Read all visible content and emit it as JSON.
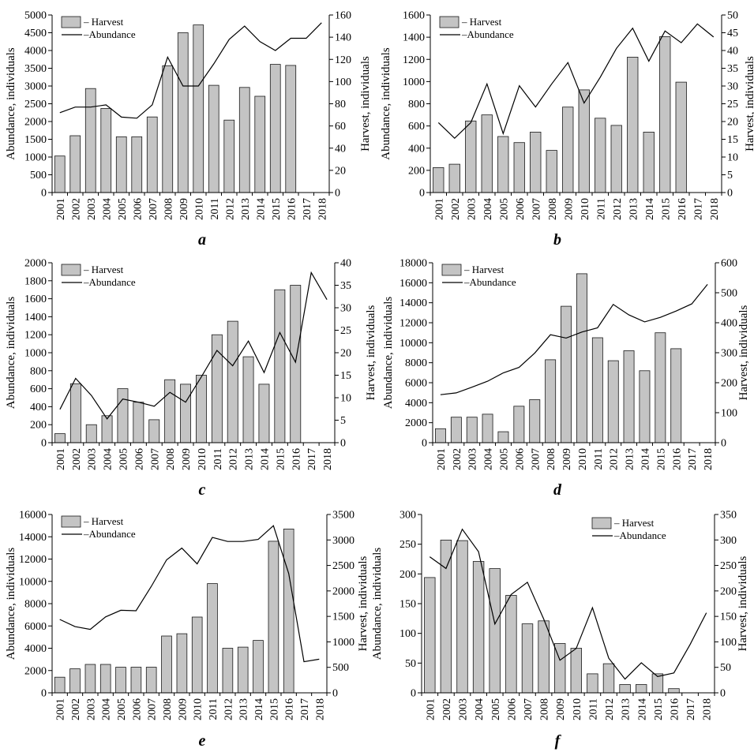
{
  "figure": {
    "panel_labels": [
      "a",
      "b",
      "c",
      "d",
      "e",
      "f"
    ]
  },
  "chart_data": [
    {
      "panel": "a",
      "type": "bar",
      "categories": [
        "2001",
        "2002",
        "2003",
        "2004",
        "2005",
        "2006",
        "2007",
        "2008",
        "2009",
        "2010",
        "2011",
        "2012",
        "2013",
        "2014",
        "2015",
        "2016",
        "2017",
        "2018"
      ],
      "ylabel_left": "Abundance, individuals",
      "ylabel_right": "Harvest, individuals",
      "ylim_left": [
        0,
        5000
      ],
      "yticks_left": [
        0,
        500,
        1000,
        1500,
        2000,
        2500,
        3000,
        3500,
        4000,
        4500,
        5000
      ],
      "ylim_right": [
        0,
        160
      ],
      "yticks_right": [
        0,
        20,
        40,
        60,
        80,
        100,
        120,
        140,
        160
      ],
      "legend": [
        "– Harvest",
        "–Abundance"
      ],
      "legend_position": "top-left",
      "series": [
        {
          "name": "Harvest",
          "kind": "bar",
          "axis": "left",
          "values": [
            1030,
            1600,
            2930,
            2370,
            1570,
            1570,
            2130,
            3570,
            4500,
            4720,
            3020,
            2040,
            2960,
            2710,
            3610,
            3580,
            null,
            null
          ]
        },
        {
          "name": "Abundance",
          "kind": "line",
          "axis": "right",
          "values": [
            72,
            77,
            77,
            79,
            68,
            67,
            79,
            122,
            96,
            96,
            116,
            138,
            150,
            136,
            128,
            139,
            139,
            153
          ]
        }
      ]
    },
    {
      "panel": "b",
      "type": "bar",
      "categories": [
        "2001",
        "2002",
        "2003",
        "2004",
        "2005",
        "2006",
        "2007",
        "2008",
        "2009",
        "2010",
        "2011",
        "2012",
        "2013",
        "2014",
        "2015",
        "2016",
        "2017",
        "2018"
      ],
      "ylabel_left": "Abundance, individuals",
      "ylabel_right": "Harvest, individuals",
      "ylim_left": [
        0,
        1600
      ],
      "yticks_left": [
        0,
        200,
        400,
        600,
        800,
        1000,
        1200,
        1400,
        1600
      ],
      "ylim_right": [
        0,
        50
      ],
      "yticks_right": [
        0,
        5,
        10,
        15,
        20,
        25,
        30,
        35,
        40,
        45,
        50
      ],
      "legend": [
        "– Harvest",
        "–Abundance"
      ],
      "legend_position": "top-left",
      "series": [
        {
          "name": "Harvest",
          "kind": "bar",
          "axis": "left",
          "values": [
            225,
            255,
            645,
            700,
            505,
            450,
            545,
            380,
            770,
            925,
            670,
            605,
            1220,
            545,
            1405,
            995,
            null,
            null
          ]
        },
        {
          "name": "Abundance",
          "kind": "line",
          "axis": "right",
          "values": [
            19.7,
            15.3,
            19.7,
            30.6,
            16.6,
            30.1,
            24.1,
            30.6,
            36.6,
            25.2,
            32.5,
            40.6,
            46.3,
            37.0,
            45.5,
            42.2,
            47.5,
            43.8
          ]
        }
      ]
    },
    {
      "panel": "c",
      "type": "bar",
      "categories": [
        "2001",
        "2002",
        "2003",
        "2004",
        "2005",
        "2006",
        "2007",
        "2008",
        "2009",
        "2010",
        "2011",
        "2012",
        "2013",
        "2014",
        "2015",
        "2016",
        "2017",
        "2018"
      ],
      "ylabel_left": "Abundance, individuals",
      "ylabel_right": "Harvest, individuals",
      "ylim_left": [
        0,
        2000
      ],
      "yticks_left": [
        0,
        200,
        400,
        600,
        800,
        1000,
        1200,
        1400,
        1600,
        1800,
        2000
      ],
      "ylim_right": [
        0,
        40
      ],
      "yticks_right": [
        0,
        5,
        10,
        15,
        20,
        25,
        30,
        35,
        40
      ],
      "legend": [
        "– Harvest",
        "–Abundance"
      ],
      "legend_position": "top-left",
      "series": [
        {
          "name": "Harvest",
          "kind": "bar",
          "axis": "left",
          "values": [
            100,
            655,
            200,
            300,
            600,
            450,
            255,
            700,
            650,
            750,
            1200,
            1350,
            955,
            650,
            1700,
            1750,
            null,
            null
          ]
        },
        {
          "name": "Abundance",
          "kind": "line",
          "axis": "right",
          "values": [
            7.4,
            14.3,
            10.5,
            5.3,
            9.7,
            9.0,
            8.1,
            11.2,
            9.0,
            14.6,
            20.5,
            17.1,
            22.6,
            15.6,
            24.5,
            17.9,
            37.8,
            31.8
          ]
        }
      ]
    },
    {
      "panel": "d",
      "type": "bar",
      "categories": [
        "2001",
        "2002",
        "2003",
        "2004",
        "2005",
        "2006",
        "2007",
        "2008",
        "2009",
        "2010",
        "2011",
        "2012",
        "2013",
        "2014",
        "2015",
        "2016",
        "2017",
        "2018"
      ],
      "ylabel_left": "Abundance, individuals",
      "ylabel_right": "Harvest, individuals",
      "ylim_left": [
        0,
        18000
      ],
      "yticks_left": [
        0,
        2000,
        4000,
        6000,
        8000,
        10000,
        12000,
        14000,
        16000,
        18000
      ],
      "ylim_right": [
        0,
        600
      ],
      "yticks_right": [
        0,
        100,
        200,
        300,
        400,
        500,
        600
      ],
      "legend": [
        "– Harvest",
        "–Abundance"
      ],
      "legend_position": "top-left",
      "series": [
        {
          "name": "Harvest",
          "kind": "bar",
          "axis": "left",
          "values": [
            1400,
            2550,
            2550,
            2850,
            1100,
            3650,
            4300,
            8300,
            13650,
            16900,
            10500,
            8200,
            9200,
            7200,
            11000,
            9400,
            null,
            null
          ]
        },
        {
          "name": "Abundance",
          "kind": "line",
          "axis": "right",
          "values": [
            160,
            166,
            185,
            205,
            233,
            251,
            299,
            360,
            349,
            369,
            383,
            461,
            426,
            403,
            418,
            439,
            463,
            528
          ]
        }
      ]
    },
    {
      "panel": "e",
      "type": "bar",
      "categories": [
        "2001",
        "2002",
        "2003",
        "2004",
        "2005",
        "2006",
        "2007",
        "2008",
        "2009",
        "2010",
        "2011",
        "2012",
        "2013",
        "2014",
        "2015",
        "2016",
        "2017",
        "2018"
      ],
      "ylabel_left": "Abundance, individuals",
      "ylabel_right": "Harvest, individuals",
      "ylim_left": [
        0,
        16000
      ],
      "yticks_left": [
        0,
        2000,
        4000,
        6000,
        8000,
        10000,
        12000,
        14000,
        16000
      ],
      "ylim_right": [
        0,
        3500
      ],
      "yticks_right": [
        0,
        500,
        1000,
        1500,
        2000,
        2500,
        3000,
        3500
      ],
      "legend": [
        "– Harvest",
        "–Abundance"
      ],
      "legend_position": "top-left",
      "series": [
        {
          "name": "Harvest",
          "kind": "bar",
          "axis": "left",
          "values": [
            1400,
            2150,
            2550,
            2550,
            2300,
            2300,
            2300,
            5100,
            5300,
            6800,
            9800,
            4000,
            4100,
            4700,
            13600,
            14700,
            null,
            null
          ]
        },
        {
          "name": "Abundance",
          "kind": "line",
          "axis": "right",
          "values": [
            1440,
            1300,
            1245,
            1490,
            1620,
            1610,
            2090,
            2610,
            2840,
            2530,
            3050,
            2970,
            2970,
            3010,
            3280,
            2340,
            610,
            660
          ]
        }
      ]
    },
    {
      "panel": "f",
      "type": "bar",
      "categories": [
        "2001",
        "2002",
        "2003",
        "2004",
        "2005",
        "2006",
        "2007",
        "2008",
        "2009",
        "2010",
        "2011",
        "2012",
        "2013",
        "2014",
        "2015",
        "2016",
        "2017",
        "2018"
      ],
      "ylabel_left": "Abundance, individuals",
      "ylabel_right": "Harvest, individuals",
      "ylim_left": [
        0,
        300
      ],
      "yticks_left": [
        0,
        50,
        100,
        150,
        200,
        250,
        300
      ],
      "ylim_right": [
        0,
        350
      ],
      "yticks_right": [
        0,
        50,
        100,
        150,
        200,
        250,
        300,
        350
      ],
      "legend": [
        "– Harvest",
        "–Abundance"
      ],
      "legend_position": "top-right",
      "series": [
        {
          "name": "Harvest",
          "kind": "bar",
          "axis": "left",
          "values": [
            194,
            257,
            256,
            221,
            209,
            164,
            116,
            121,
            83,
            75,
            32,
            49,
            14,
            14,
            32,
            7,
            null,
            null
          ]
        },
        {
          "name": "Abundance",
          "kind": "line",
          "axis": "right",
          "values": [
            267,
            244,
            321,
            277,
            135,
            193,
            217,
            145,
            64,
            87,
            167,
            68,
            27,
            59,
            32,
            39,
            95,
            157
          ]
        }
      ]
    }
  ]
}
